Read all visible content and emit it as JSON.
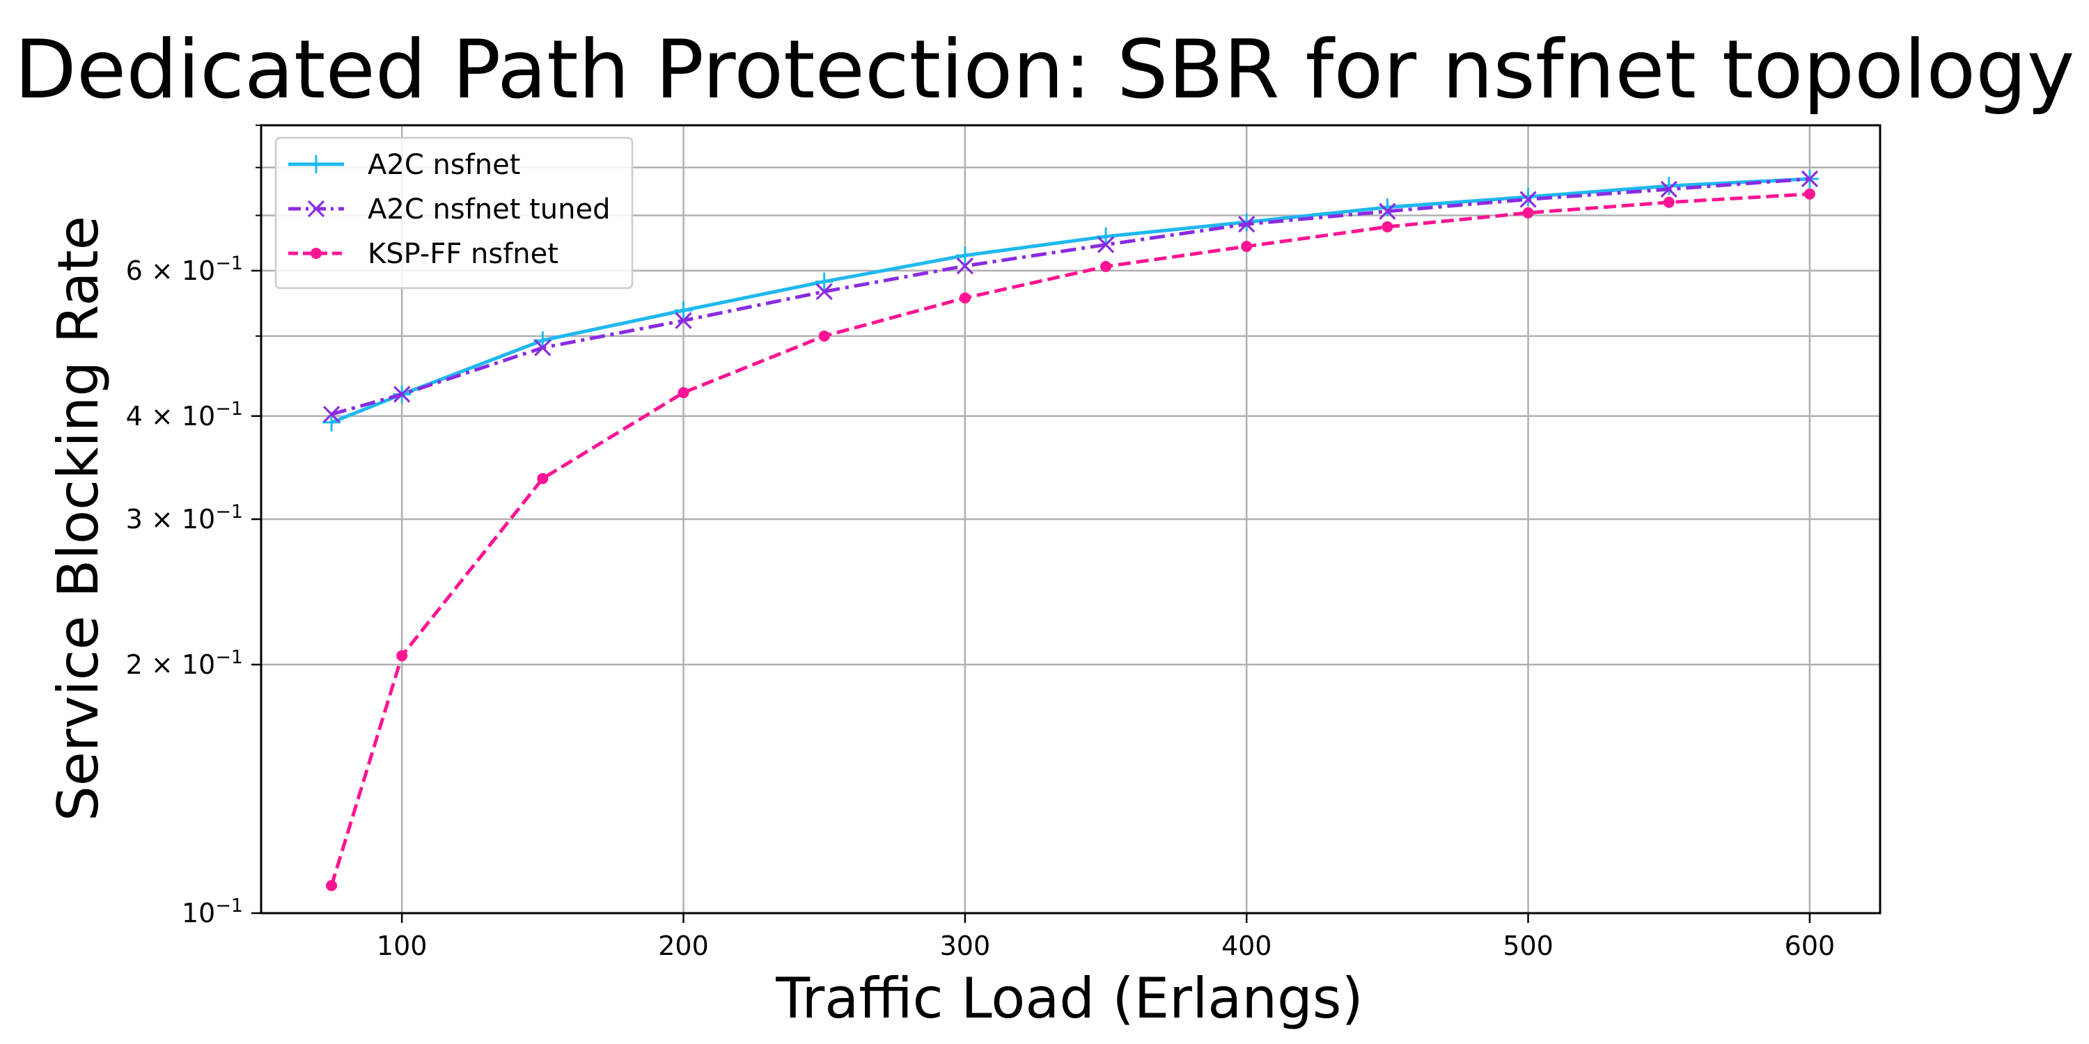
{
  "chart_data": {
    "type": "line",
    "title": "Dedicated Path Protection: SBR for nsfnet topology",
    "xlabel": "Traffic Load (Erlangs)",
    "ylabel": "Service Blocking Rate",
    "xscale": "linear",
    "yscale": "log",
    "xlim": [
      50,
      625
    ],
    "ylim": [
      0.1,
      0.9
    ],
    "grid": true,
    "legend_position": "top-left",
    "x_ticks": [
      {
        "value": 100,
        "label": "100"
      },
      {
        "value": 200,
        "label": "200"
      },
      {
        "value": 300,
        "label": "300"
      },
      {
        "value": 400,
        "label": "400"
      },
      {
        "value": 500,
        "label": "500"
      },
      {
        "value": 600,
        "label": "600"
      }
    ],
    "y_ticks": [
      {
        "value": 0.1,
        "base": "10",
        "exponent": "−1",
        "mult": ""
      },
      {
        "value": 0.2,
        "base": "10",
        "exponent": "−1",
        "mult": "2 × "
      },
      {
        "value": 0.3,
        "base": "10",
        "exponent": "−1",
        "mult": "3 × "
      },
      {
        "value": 0.4,
        "base": "10",
        "exponent": "−1",
        "mult": "4 × "
      },
      {
        "value": 0.6,
        "base": "10",
        "exponent": "−1",
        "mult": "6 × "
      }
    ],
    "x": [
      75,
      100,
      150,
      200,
      250,
      300,
      350,
      400,
      450,
      500,
      550,
      600
    ],
    "series": [
      {
        "name": "A2C nsfnet",
        "color": "#1fb8f0",
        "line_style": "solid",
        "marker": "plus",
        "values": [
          0.393,
          0.425,
          0.494,
          0.537,
          0.582,
          0.626,
          0.66,
          0.687,
          0.716,
          0.737,
          0.76,
          0.775
        ]
      },
      {
        "name": "A2C nsfnet tuned",
        "color": "#8a2be2",
        "line_style": "dashdot",
        "marker": "x",
        "values": [
          0.402,
          0.425,
          0.484,
          0.522,
          0.566,
          0.608,
          0.645,
          0.683,
          0.708,
          0.732,
          0.753,
          0.775
        ]
      },
      {
        "name": "KSP-FF nsfnet",
        "color": "#ff1493",
        "line_style": "dashed",
        "marker": "dot",
        "values": [
          0.108,
          0.205,
          0.336,
          0.427,
          0.5,
          0.556,
          0.607,
          0.642,
          0.678,
          0.705,
          0.726,
          0.743
        ]
      }
    ]
  }
}
